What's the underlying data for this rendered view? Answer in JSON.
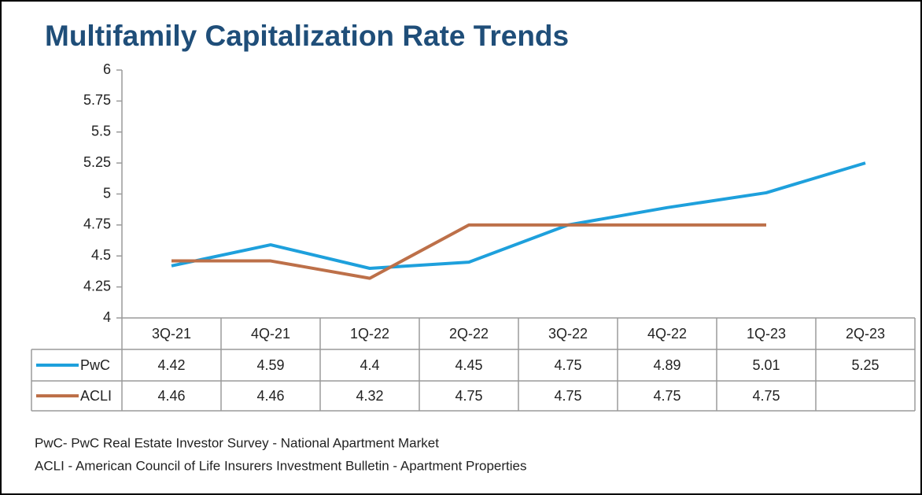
{
  "chart_data": {
    "type": "line",
    "title": "Multifamily Capitalization Rate Trends",
    "categories": [
      "3Q-21",
      "4Q-21",
      "1Q-22",
      "2Q-22",
      "3Q-22",
      "4Q-22",
      "1Q-23",
      "2Q-23"
    ],
    "series": [
      {
        "name": "PwC",
        "color": "#1ea0dc",
        "values": [
          4.42,
          4.59,
          4.4,
          4.45,
          4.75,
          4.89,
          5.01,
          5.25
        ]
      },
      {
        "name": "ACLI",
        "color": "#bd7049",
        "values": [
          4.46,
          4.46,
          4.32,
          4.75,
          4.75,
          4.75,
          4.75,
          null
        ]
      }
    ],
    "ylim": [
      4,
      6
    ],
    "yticks": [
      4,
      4.25,
      4.5,
      4.75,
      5,
      5.25,
      5.5,
      5.75,
      6
    ],
    "notes": [
      "PwC- PwC Real Estate Investor Survey - National Apartment Market",
      "ACLI - American Council of Life Insurers Investment Bulletin - Apartment Properties"
    ]
  }
}
